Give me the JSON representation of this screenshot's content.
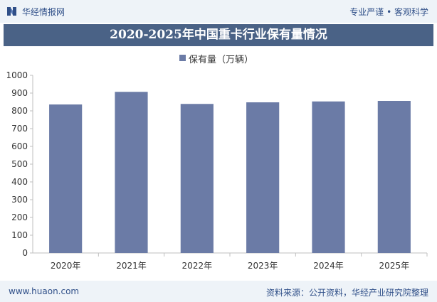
{
  "header": {
    "brand": "华经情报网",
    "tagline": "专业严谨 • 客观科学"
  },
  "chart_data": {
    "type": "bar",
    "title": "2020-2025年中国重卡行业保有量情况",
    "categories": [
      "2020年",
      "2021年",
      "2022年",
      "2023年",
      "2024年",
      "2025年"
    ],
    "series": [
      {
        "name": "保有量（万辆）",
        "values": [
          836,
          907,
          839,
          848,
          853,
          856
        ]
      }
    ],
    "ylim": [
      0,
      1000
    ],
    "yticks": [
      0,
      100,
      200,
      300,
      400,
      500,
      600,
      700,
      800,
      900,
      1000
    ],
    "xlabel": "",
    "ylabel": "",
    "grid": false,
    "legend_position": "top-center",
    "bar_color": "#6b7ba6"
  },
  "footer": {
    "website": "www.huaon.com",
    "source": "资料来源：公开资料，华经产业研究院整理"
  },
  "colors": {
    "title_bar": "#4a6286",
    "header_bg": "#eef3f8",
    "brand_text": "#2f4f88"
  }
}
